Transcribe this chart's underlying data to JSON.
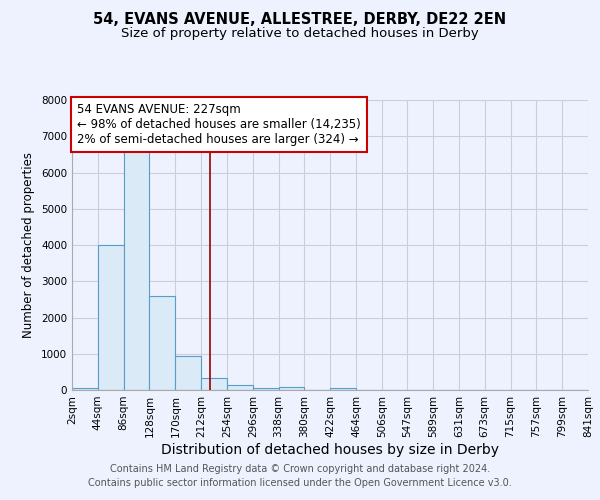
{
  "title": "54, EVANS AVENUE, ALLESTREE, DERBY, DE22 2EN",
  "subtitle": "Size of property relative to detached houses in Derby",
  "xlabel": "Distribution of detached houses by size in Derby",
  "ylabel": "Number of detached properties",
  "bar_color": "#daeaf6",
  "bar_edge_color": "#5a9dc8",
  "bin_edges": [
    2,
    44,
    86,
    128,
    170,
    212,
    254,
    296,
    338,
    380,
    422,
    464,
    506,
    547,
    589,
    631,
    673,
    715,
    757,
    799,
    841
  ],
  "bar_heights": [
    50,
    4000,
    6600,
    2600,
    950,
    320,
    130,
    50,
    80,
    0,
    50,
    0,
    0,
    0,
    0,
    0,
    0,
    0,
    0,
    0
  ],
  "vline_x": 227,
  "vline_color": "#990000",
  "ylim": [
    0,
    8000
  ],
  "yticks": [
    0,
    1000,
    2000,
    3000,
    4000,
    5000,
    6000,
    7000,
    8000
  ],
  "annotation_text": "54 EVANS AVENUE: 227sqm\n← 98% of detached houses are smaller (14,235)\n2% of semi-detached houses are larger (324) →",
  "annotation_box_color": "#ffffff",
  "annotation_box_edge": "#cc0000",
  "footer_line1": "Contains HM Land Registry data © Crown copyright and database right 2024.",
  "footer_line2": "Contains public sector information licensed under the Open Government Licence v3.0.",
  "bg_color": "#eef2ff",
  "grid_color": "#ccccdd",
  "title_fontsize": 10.5,
  "subtitle_fontsize": 9.5,
  "xlabel_fontsize": 10,
  "ylabel_fontsize": 8.5,
  "tick_fontsize": 7.5,
  "footer_fontsize": 7,
  "annotation_fontsize": 8.5
}
